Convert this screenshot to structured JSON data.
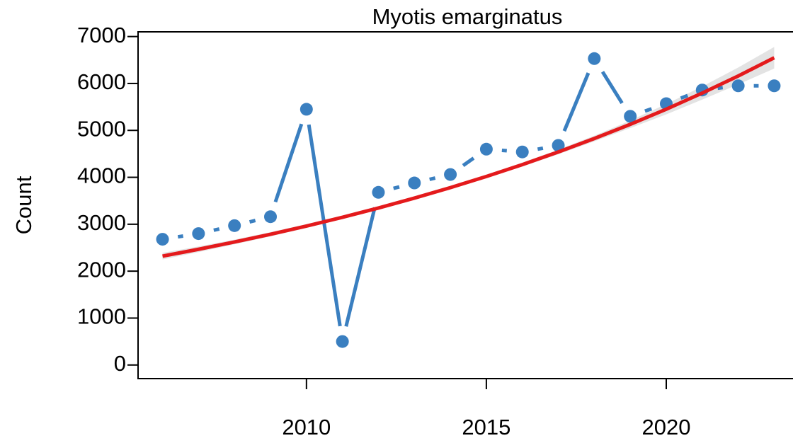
{
  "chart_data": {
    "type": "line",
    "title": "Myotis emarginatus",
    "y_label": "Count",
    "x": [
      2006,
      2007,
      2008,
      2009,
      2010,
      2011,
      2012,
      2013,
      2014,
      2015,
      2016,
      2017,
      2018,
      2019,
      2020,
      2021,
      2022,
      2023
    ],
    "series": [
      {
        "color": "#3a7fc0",
        "values": [
          2680,
          2800,
          2970,
          3160,
          5450,
          500,
          3680,
          3880,
          4060,
          4600,
          4540,
          4680,
          6530,
          5300,
          5570,
          5860,
          5950,
          5950
        ]
      },
      {
        "color": "#e41a1c",
        "values": [
          2320,
          2466,
          2621,
          2786,
          2961,
          3148,
          3346,
          3557,
          3780,
          4018,
          4271,
          4540,
          4826,
          5129,
          5452,
          5795,
          6160,
          6547
        ],
        "band_lower": [
          2250,
          2406,
          2571,
          2741,
          2921,
          3113,
          3316,
          3527,
          3750,
          3983,
          4231,
          4490,
          4766,
          5049,
          5342,
          5655,
          5980,
          6317
        ],
        "band_upper": [
          2390,
          2526,
          2671,
          2831,
          3001,
          3183,
          3376,
          3587,
          3810,
          4053,
          4311,
          4590,
          4886,
          5209,
          5562,
          5935,
          6340,
          6777
        ],
        "band_color": "#e3e3e3"
      }
    ],
    "xlim": [
      2005.32,
      2023.68
    ],
    "xticks": [
      2010,
      2015,
      2020
    ],
    "ylim": [
      -290,
      7100
    ],
    "yticks": [
      0,
      1000,
      2000,
      3000,
      4000,
      5000,
      6000,
      7000
    ]
  }
}
